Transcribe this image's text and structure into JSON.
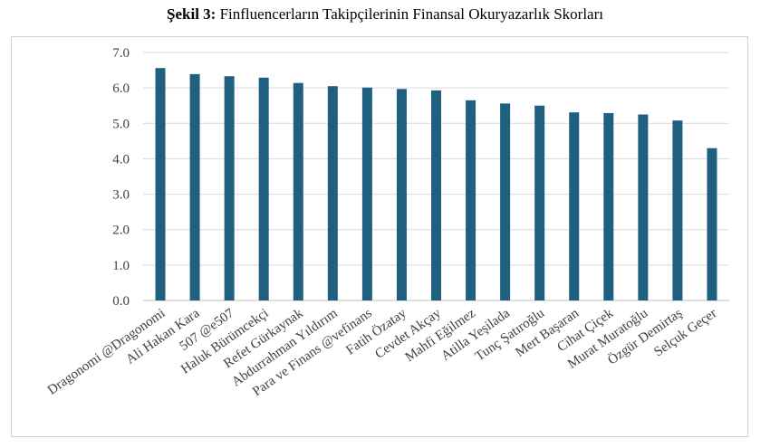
{
  "figure": {
    "label": "Şekil 3:",
    "caption": "Finfluencerların Takipçilerinin Finansal Okuryazarlık Skorları"
  },
  "chart_data": {
    "type": "bar",
    "title": "Şekil 3: Finfluencerların Takipçilerinin Finansal Okuryazarlık Skorları",
    "xlabel": "",
    "ylabel": "",
    "ylim": [
      0,
      7
    ],
    "yticks": [
      "0.0",
      "1.0",
      "2.0",
      "3.0",
      "4.0",
      "5.0",
      "6.0",
      "7.0"
    ],
    "grid": true,
    "legend": "none",
    "bar_color": "#1f5f80",
    "categories": [
      "Dragonomi @Dragonomi",
      "Ali Hakan Kara",
      "507 @e507",
      "Haluk Bürümcekçi",
      "Refet Gürkaynak",
      "Abdurrahman Yıldırım",
      "Para ve Finans @vefinans",
      "Fatih Özatay",
      "Cevdet Akçay",
      "Mahfi Eğilmez",
      "Atilla Yeşilada",
      "Tunç Şatıroğlu",
      "Mert Başaran",
      "Cihat Çiçek",
      "Murat Muratoğlu",
      "Özgür Demirtaş",
      "Selçuk Geçer"
    ],
    "values": [
      6.56,
      6.39,
      6.33,
      6.29,
      6.14,
      6.05,
      6.01,
      5.97,
      5.93,
      5.65,
      5.56,
      5.5,
      5.31,
      5.29,
      5.25,
      5.08,
      4.3
    ]
  }
}
